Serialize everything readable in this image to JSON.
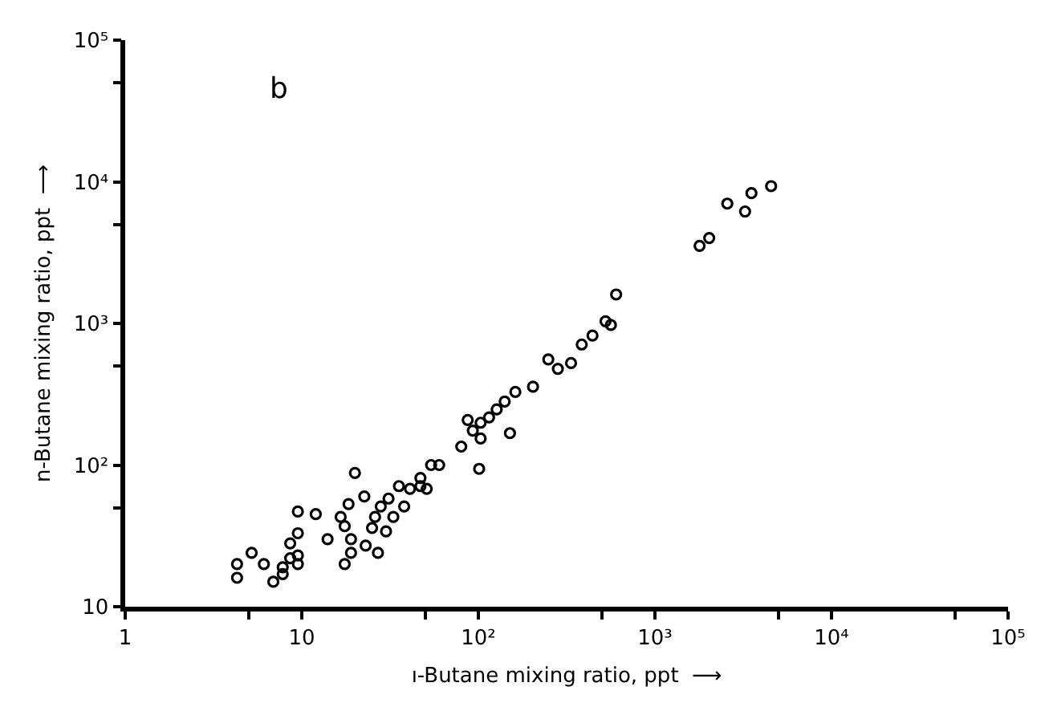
{
  "chart_data": {
    "type": "scatter",
    "xlabel": "ı-Butane mixing ratio, ppt  ⟶",
    "ylabel": "n-Butane mixing ratio, ppt  ⟶",
    "annotations": [
      "b"
    ],
    "log": "xy",
    "legend": false,
    "marker": "circle",
    "xlim": [
      1,
      100000
    ],
    "ylim": [
      10,
      100000
    ],
    "xticks": [
      {
        "value": 1,
        "label": "1"
      },
      {
        "value": 5,
        "label": null
      },
      {
        "value": 10,
        "label": "10"
      },
      {
        "value": 50,
        "label": null
      },
      {
        "value": 100,
        "label": "10²"
      },
      {
        "value": 500,
        "label": null
      },
      {
        "value": 1000,
        "label": "10³"
      },
      {
        "value": 5000,
        "label": null
      },
      {
        "value": 10000,
        "label": "10⁴"
      },
      {
        "value": 50000,
        "label": null
      },
      {
        "value": 100000,
        "label": "10⁵"
      }
    ],
    "yticks": [
      {
        "value": 10,
        "label": "10"
      },
      {
        "value": 50,
        "label": null
      },
      {
        "value": 100,
        "label": "10²"
      },
      {
        "value": 500,
        "label": null
      },
      {
        "value": 1000,
        "label": "10³"
      },
      {
        "value": 5000,
        "label": null
      },
      {
        "value": 10000,
        "label": "10⁴"
      },
      {
        "value": 50000,
        "label": null
      },
      {
        "value": 100000,
        "label": "10⁵"
      }
    ],
    "series": [
      {
        "color": "#000000",
        "x": [
          4.3,
          4.3,
          5.2,
          6.1,
          6.9,
          7.8,
          7.8,
          8.6,
          8.6,
          9.5,
          9.5,
          9.5,
          9.5,
          12,
          14,
          17.5,
          19,
          20,
          16.6,
          17.5,
          18.4,
          19,
          22.6,
          23,
          27,
          25,
          26,
          28,
          30,
          31,
          33,
          35.5,
          38,
          41,
          47,
          47,
          51,
          54,
          60,
          101,
          80,
          87,
          93,
          103,
          115,
          127,
          141,
          151,
          162,
          204,
          103,
          249,
          282,
          335,
          385,
          443,
          525,
          563,
          603,
          1790,
          2030,
          2570,
          3240,
          3520,
          4550
        ],
        "values": [
          20,
          16,
          24,
          20,
          15,
          17,
          19,
          22,
          28,
          23,
          20,
          33,
          47,
          45,
          30,
          20,
          24,
          88,
          43,
          37,
          53,
          30,
          60,
          27,
          24,
          36,
          43,
          51,
          34,
          58,
          43,
          71,
          51,
          68,
          71,
          81,
          68,
          100,
          100,
          94,
          135,
          208,
          175,
          154,
          217,
          247,
          281,
          168,
          328,
          357,
          199,
          557,
          478,
          525,
          710,
          820,
          1035,
          975,
          1600,
          3530,
          4010,
          7010,
          6170,
          8310,
          9310
        ]
      }
    ]
  }
}
